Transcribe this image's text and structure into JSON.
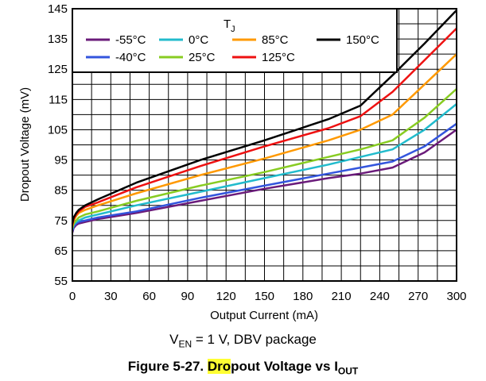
{
  "chart_data": {
    "type": "line",
    "xlabel": "Output Current (mA)",
    "ylabel": "Dropout Voltage (mV)",
    "xlim": [
      0,
      300
    ],
    "ylim": [
      55,
      145
    ],
    "x_ticks": [
      "0",
      "30",
      "60",
      "90",
      "120",
      "150",
      "180",
      "210",
      "240",
      "270",
      "300"
    ],
    "y_ticks": [
      "55",
      "65",
      "75",
      "85",
      "95",
      "105",
      "115",
      "125",
      "135",
      "145"
    ],
    "grid": true,
    "legend": {
      "title_main": "T",
      "title_sub": "J",
      "placement": "top"
    },
    "series": [
      {
        "name": "-55°C",
        "color": "#6a1b7a",
        "x": [
          0,
          1,
          3,
          5,
          10,
          20,
          50,
          100,
          150,
          200,
          225,
          250,
          275,
          300
        ],
        "y": [
          71,
          72.5,
          73.5,
          74,
          74.5,
          75.5,
          77.5,
          81.5,
          85.5,
          89,
          90.5,
          92.5,
          97.5,
          105
        ]
      },
      {
        "name": "-40°C",
        "color": "#3355dd",
        "x": [
          0,
          1,
          3,
          5,
          10,
          20,
          50,
          100,
          150,
          200,
          225,
          250,
          275,
          300
        ],
        "y": [
          71.5,
          73,
          74,
          74.5,
          75,
          76,
          78,
          82.5,
          86.5,
          90.5,
          92.5,
          94.5,
          99.5,
          107
        ]
      },
      {
        "name": "0°C",
        "color": "#22bbcc",
        "x": [
          0,
          1,
          3,
          5,
          10,
          20,
          50,
          100,
          150,
          200,
          225,
          250,
          275,
          300
        ],
        "y": [
          72,
          73.5,
          74.5,
          75,
          76,
          77,
          80,
          84.5,
          89,
          93.5,
          96,
          98.5,
          105,
          113.5
        ]
      },
      {
        "name": "25°C",
        "color": "#88cc22",
        "x": [
          0,
          1,
          3,
          5,
          10,
          20,
          50,
          100,
          150,
          200,
          225,
          250,
          275,
          300
        ],
        "y": [
          72.5,
          74,
          75,
          76,
          77,
          78,
          81.5,
          86.5,
          91,
          96,
          98.5,
          101.5,
          109,
          118.5
        ]
      },
      {
        "name": "85°C",
        "color": "#ff9900",
        "x": [
          0,
          1,
          3,
          5,
          10,
          20,
          50,
          100,
          150,
          200,
          225,
          250,
          275,
          300
        ],
        "y": [
          73,
          75,
          76.5,
          77.5,
          78.5,
          80,
          84,
          90,
          95.5,
          101.5,
          105,
          110,
          120,
          130
        ]
      },
      {
        "name": "125°C",
        "color": "#ee1111",
        "x": [
          0,
          1,
          3,
          5,
          10,
          20,
          50,
          100,
          150,
          200,
          225,
          250,
          275,
          300
        ],
        "y": [
          73.5,
          75.5,
          77,
          78,
          79.5,
          81,
          86,
          93,
          99.5,
          105.5,
          109.5,
          117.5,
          128,
          138.5
        ]
      },
      {
        "name": "150°C",
        "color": "#000000",
        "x": [
          0,
          1,
          3,
          5,
          10,
          20,
          50,
          100,
          150,
          200,
          225,
          250,
          275,
          300
        ],
        "y": [
          74,
          76,
          77.5,
          78.5,
          80,
          82,
          87.5,
          95,
          101.5,
          108.5,
          113,
          123,
          133.5,
          144.5
        ]
      }
    ],
    "annotation": {
      "prefix": "V",
      "sub": "EN",
      "suffix": " = 1 V, DBV package"
    },
    "figure_caption": {
      "lead": "Figure 5-27. ",
      "highlight": "Dro",
      "rest": "pout Voltage vs I",
      "sub": "OUT"
    }
  }
}
